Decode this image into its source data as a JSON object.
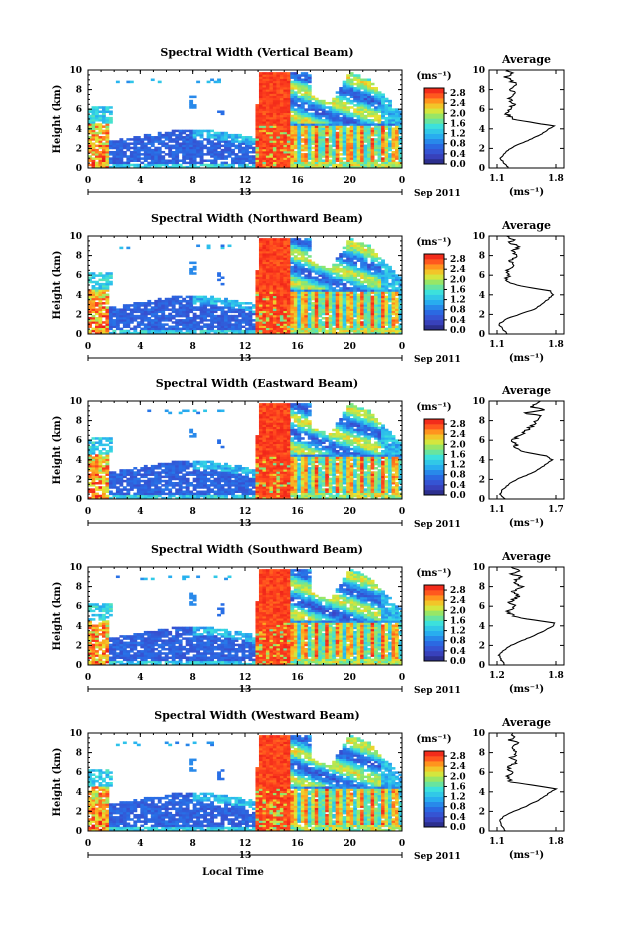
{
  "chart_data": {
    "type": "heatmap",
    "xlabel": "Local Time",
    "date_label": "13",
    "date_suffix": "Sep 2011",
    "ylabel": "Height (km)",
    "colorbar_unit": "(ms⁻¹)",
    "colorbar_ticks": [
      "0.0",
      "0.4",
      "0.8",
      "1.2",
      "1.6",
      "2.0",
      "2.4",
      "2.8"
    ],
    "colorbar_range": [
      0,
      3.0
    ],
    "x_ticks": [
      "0",
      "4",
      "8",
      "12",
      "16",
      "20",
      "0"
    ],
    "x_range_hours": [
      0,
      24
    ],
    "y_ticks": [
      "0",
      "2",
      "4",
      "6",
      "8",
      "10"
    ],
    "y_range": [
      0,
      10
    ],
    "avg_title": "Average",
    "avg_xlabel": "(ms⁻¹)",
    "colors": {
      "low": "#2a2a8c",
      "mid": "#29c9e0",
      "high": "#ff2a1a"
    },
    "panels": [
      {
        "title": "Spectral Width (Vertical Beam)",
        "avg_x_ticks": [
          "1.1",
          "1.8"
        ],
        "avg_range": [
          1.1,
          1.8
        ],
        "avg_profile": [
          [
            0.0,
            1.24
          ],
          [
            0.5,
            1.18
          ],
          [
            1.0,
            1.14
          ],
          [
            1.5,
            1.19
          ],
          [
            2.0,
            1.26
          ],
          [
            2.5,
            1.38
          ],
          [
            3.0,
            1.52
          ],
          [
            3.5,
            1.64
          ],
          [
            4.0,
            1.72
          ],
          [
            4.3,
            1.78
          ],
          [
            4.6,
            1.55
          ],
          [
            5.0,
            1.28
          ],
          [
            5.5,
            1.22
          ],
          [
            6.0,
            1.24
          ],
          [
            6.5,
            1.29
          ],
          [
            7.0,
            1.25
          ],
          [
            7.5,
            1.31
          ],
          [
            8.0,
            1.27
          ],
          [
            8.5,
            1.33
          ],
          [
            9.0,
            1.25
          ],
          [
            9.3,
            1.2
          ],
          [
            9.6,
            1.28
          ],
          [
            10.0,
            1.22
          ]
        ]
      },
      {
        "title": "Spectral Width (Northward Beam)",
        "avg_x_ticks": [
          "1.1",
          "1.8"
        ],
        "avg_range": [
          1.1,
          1.8
        ],
        "avg_profile": [
          [
            0.0,
            1.22
          ],
          [
            0.5,
            1.17
          ],
          [
            1.0,
            1.12
          ],
          [
            1.5,
            1.2
          ],
          [
            2.0,
            1.36
          ],
          [
            2.5,
            1.54
          ],
          [
            3.0,
            1.62
          ],
          [
            3.5,
            1.7
          ],
          [
            4.0,
            1.76
          ],
          [
            4.4,
            1.74
          ],
          [
            4.8,
            1.45
          ],
          [
            5.2,
            1.23
          ],
          [
            5.5,
            1.2
          ],
          [
            6.0,
            1.25
          ],
          [
            6.5,
            1.22
          ],
          [
            7.0,
            1.3
          ],
          [
            7.5,
            1.26
          ],
          [
            8.0,
            1.34
          ],
          [
            8.5,
            1.29
          ],
          [
            9.0,
            1.37
          ],
          [
            9.3,
            1.25
          ],
          [
            9.6,
            1.3
          ],
          [
            10.0,
            1.24
          ]
        ]
      },
      {
        "title": "Spectral Width (Eastward Beam)",
        "avg_x_ticks": [
          "1.1",
          "1.7"
        ],
        "avg_range": [
          1.1,
          1.7
        ],
        "avg_profile": [
          [
            0.0,
            1.18
          ],
          [
            0.5,
            1.13
          ],
          [
            1.0,
            1.16
          ],
          [
            1.5,
            1.22
          ],
          [
            2.0,
            1.3
          ],
          [
            2.5,
            1.42
          ],
          [
            3.0,
            1.52
          ],
          [
            3.5,
            1.59
          ],
          [
            4.0,
            1.66
          ],
          [
            4.4,
            1.6
          ],
          [
            4.8,
            1.38
          ],
          [
            5.2,
            1.27
          ],
          [
            5.6,
            1.3
          ],
          [
            6.0,
            1.26
          ],
          [
            6.5,
            1.33
          ],
          [
            7.0,
            1.4
          ],
          [
            7.5,
            1.46
          ],
          [
            8.0,
            1.5
          ],
          [
            8.5,
            1.52
          ],
          [
            8.8,
            1.38
          ],
          [
            9.1,
            1.6
          ],
          [
            9.4,
            1.45
          ],
          [
            10.0,
            1.55
          ]
        ]
      },
      {
        "title": "Spectral Width (Southward Beam)",
        "avg_x_ticks": [
          "1.2",
          "1.8"
        ],
        "avg_range": [
          1.2,
          1.8
        ],
        "avg_profile": [
          [
            0.0,
            1.28
          ],
          [
            0.5,
            1.24
          ],
          [
            1.0,
            1.22
          ],
          [
            1.5,
            1.27
          ],
          [
            2.0,
            1.34
          ],
          [
            2.5,
            1.46
          ],
          [
            3.0,
            1.58
          ],
          [
            3.5,
            1.68
          ],
          [
            4.0,
            1.77
          ],
          [
            4.3,
            1.79
          ],
          [
            4.7,
            1.5
          ],
          [
            5.0,
            1.36
          ],
          [
            5.5,
            1.3
          ],
          [
            6.0,
            1.38
          ],
          [
            6.5,
            1.33
          ],
          [
            7.0,
            1.42
          ],
          [
            7.5,
            1.36
          ],
          [
            8.0,
            1.45
          ],
          [
            8.5,
            1.38
          ],
          [
            9.0,
            1.44
          ],
          [
            9.3,
            1.36
          ],
          [
            9.6,
            1.42
          ],
          [
            10.0,
            1.34
          ]
        ]
      },
      {
        "title": "Spectral Width (Westward Beam)",
        "avg_x_ticks": [
          "1.1",
          "1.8"
        ],
        "avg_range": [
          1.1,
          1.8
        ],
        "avg_profile": [
          [
            0.0,
            1.2
          ],
          [
            0.5,
            1.16
          ],
          [
            1.0,
            1.13
          ],
          [
            1.5,
            1.18
          ],
          [
            2.0,
            1.3
          ],
          [
            2.5,
            1.44
          ],
          [
            3.0,
            1.56
          ],
          [
            3.5,
            1.66
          ],
          [
            4.0,
            1.74
          ],
          [
            4.3,
            1.8
          ],
          [
            4.7,
            1.52
          ],
          [
            5.0,
            1.27
          ],
          [
            5.5,
            1.22
          ],
          [
            6.0,
            1.28
          ],
          [
            6.5,
            1.24
          ],
          [
            7.0,
            1.32
          ],
          [
            7.5,
            1.27
          ],
          [
            8.0,
            1.35
          ],
          [
            8.5,
            1.28
          ],
          [
            9.0,
            1.38
          ],
          [
            9.3,
            1.24
          ],
          [
            9.6,
            1.33
          ],
          [
            10.0,
            1.26
          ]
        ]
      }
    ]
  }
}
